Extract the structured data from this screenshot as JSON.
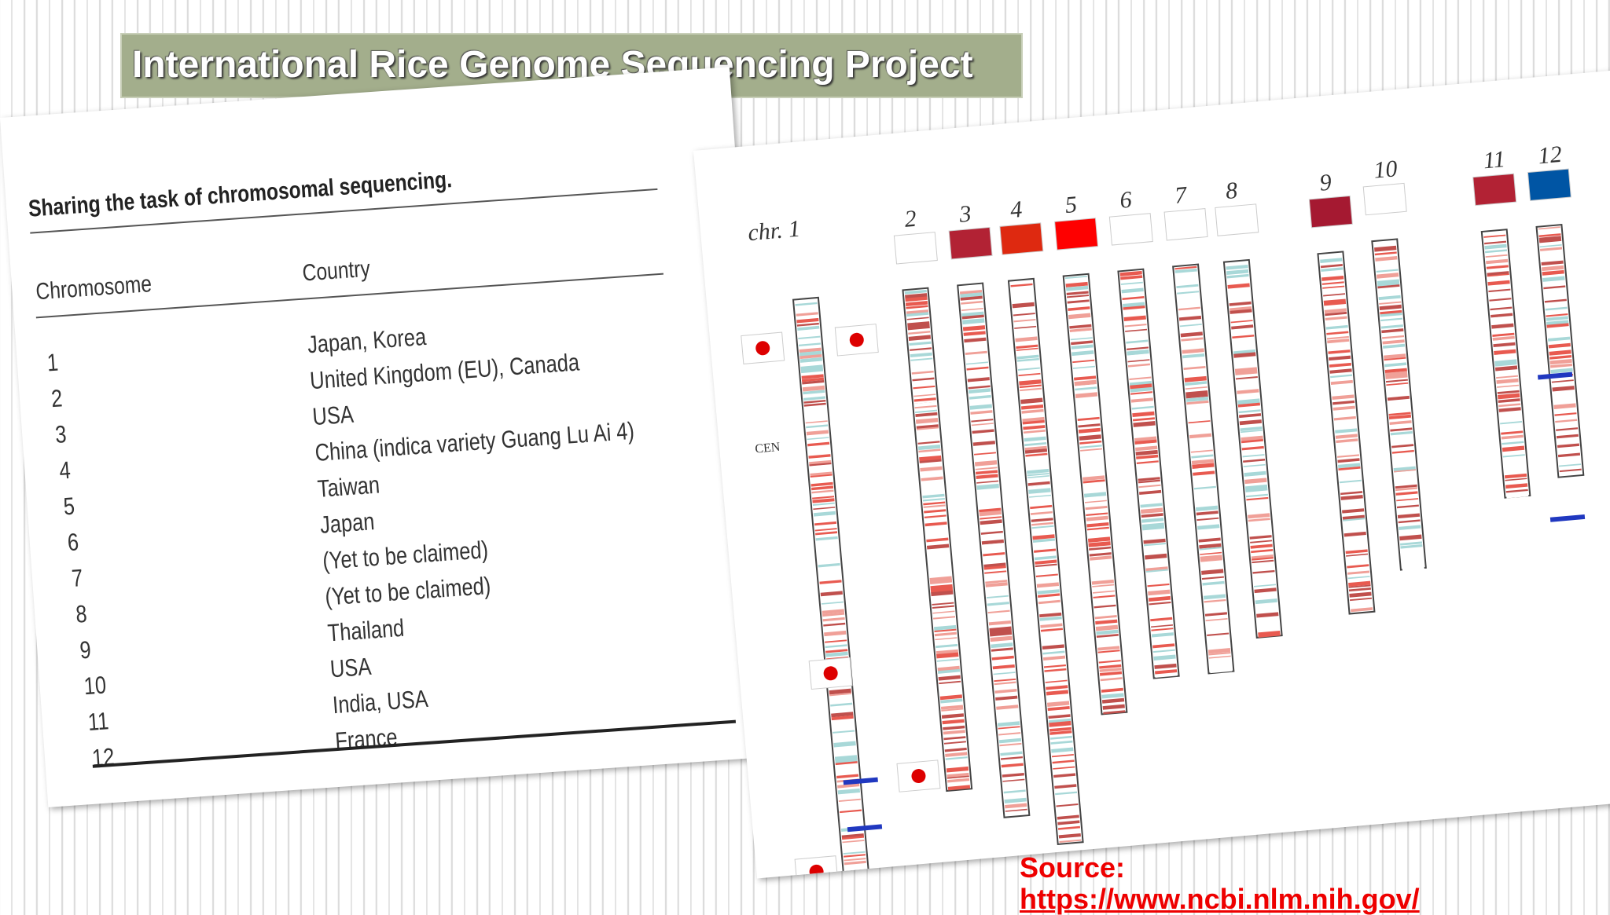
{
  "header": {
    "title": "International Rice Genome Sequencing Project"
  },
  "table": {
    "caption": "Sharing the task of chromosomal sequencing.",
    "columns": [
      "Chromosome",
      "Country"
    ],
    "rows": [
      [
        "1",
        "Japan, Korea"
      ],
      [
        "2",
        "United Kingdom (EU), Canada"
      ],
      [
        "3",
        "USA"
      ],
      [
        "4",
        "China (indica variety Guang Lu Ai 4)"
      ],
      [
        "5",
        "Taiwan"
      ],
      [
        "6",
        "Japan"
      ],
      [
        "7",
        "(Yet to be claimed)"
      ],
      [
        "8",
        "(Yet to be claimed)"
      ],
      [
        "9",
        "Thailand"
      ],
      [
        "10",
        "USA"
      ],
      [
        "11",
        "India, USA"
      ],
      [
        "12",
        "France"
      ]
    ]
  },
  "diagram": {
    "chromosomes": [
      "chr. 1",
      "2",
      "3",
      "4",
      "5",
      "6",
      "7",
      "8",
      "9",
      "10",
      "11",
      "12"
    ],
    "centromere": "CEN"
  },
  "source": {
    "label": "Source:",
    "url": "https://www.ncbi.nlm.nih.gov/"
  }
}
